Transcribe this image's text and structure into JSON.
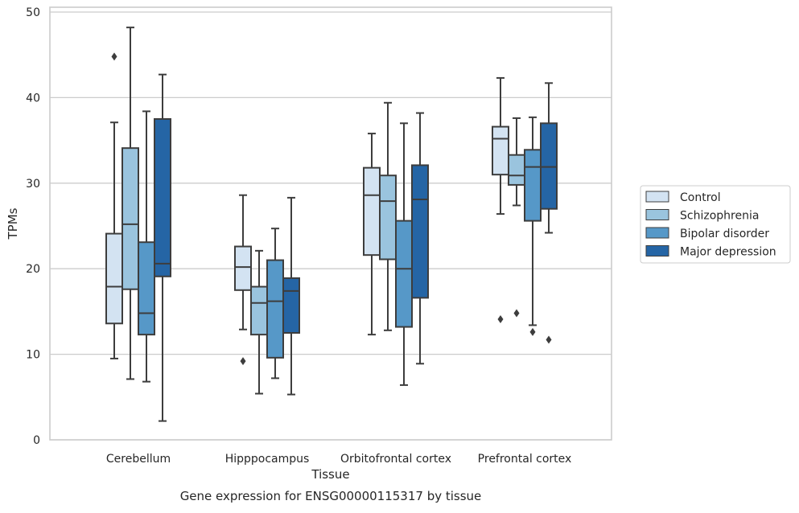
{
  "chart_data": {
    "type": "boxplot",
    "title": "",
    "xlabel": "Tissue",
    "ylabel": "TPMs",
    "caption": "Gene expression for ENSG00000115317 by tissue",
    "ylim": [
      0,
      50
    ],
    "yticks": [
      0,
      10,
      20,
      30,
      40,
      50
    ],
    "grid": true,
    "legend_position": "right",
    "categories": [
      "Cerebellum",
      "Hipppocampus",
      "Orbitofrontal cortex",
      "Prefrontal cortex"
    ],
    "series": [
      {
        "name": "Control",
        "color": "#d3e3f2",
        "boxes": [
          {
            "whislo": 9.5,
            "q1": 13.6,
            "med": 17.9,
            "q3": 24.1,
            "whishi": 37.1,
            "fliers": [
              44.8
            ]
          },
          {
            "whislo": 12.9,
            "q1": 17.5,
            "med": 20.2,
            "q3": 22.6,
            "whishi": 28.6,
            "fliers": [
              9.2
            ]
          },
          {
            "whislo": 12.3,
            "q1": 21.6,
            "med": 28.6,
            "q3": 31.8,
            "whishi": 35.8,
            "fliers": []
          },
          {
            "whislo": 26.4,
            "q1": 31.0,
            "med": 35.2,
            "q3": 36.6,
            "whishi": 42.3,
            "fliers": [
              14.1
            ]
          }
        ]
      },
      {
        "name": "Schizophrenia",
        "color": "#9ac4de",
        "boxes": [
          {
            "whislo": 7.1,
            "q1": 17.6,
            "med": 25.2,
            "q3": 34.1,
            "whishi": 48.2,
            "fliers": []
          },
          {
            "whislo": 5.4,
            "q1": 12.3,
            "med": 16.0,
            "q3": 17.9,
            "whishi": 22.1,
            "fliers": []
          },
          {
            "whislo": 12.8,
            "q1": 21.1,
            "med": 27.9,
            "q3": 30.9,
            "whishi": 39.4,
            "fliers": []
          },
          {
            "whislo": 27.4,
            "q1": 29.8,
            "med": 30.9,
            "q3": 33.3,
            "whishi": 37.6,
            "fliers": [
              14.8
            ]
          }
        ]
      },
      {
        "name": "Bipolar disorder",
        "color": "#5698c8",
        "boxes": [
          {
            "whislo": 6.8,
            "q1": 12.3,
            "med": 14.8,
            "q3": 23.1,
            "whishi": 38.4,
            "fliers": []
          },
          {
            "whislo": 7.2,
            "q1": 9.6,
            "med": 16.2,
            "q3": 21.0,
            "whishi": 24.7,
            "fliers": []
          },
          {
            "whislo": 6.4,
            "q1": 13.2,
            "med": 20.0,
            "q3": 25.6,
            "whishi": 37.0,
            "fliers": []
          },
          {
            "whislo": 13.4,
            "q1": 25.6,
            "med": 31.9,
            "q3": 33.9,
            "whishi": 37.7,
            "fliers": [
              12.6
            ]
          }
        ]
      },
      {
        "name": "Major depression",
        "color": "#2565a5",
        "boxes": [
          {
            "whislo": 2.2,
            "q1": 19.1,
            "med": 20.6,
            "q3": 37.5,
            "whishi": 42.7,
            "fliers": []
          },
          {
            "whislo": 5.3,
            "q1": 12.5,
            "med": 17.4,
            "q3": 18.9,
            "whishi": 28.3,
            "fliers": []
          },
          {
            "whislo": 8.9,
            "q1": 16.6,
            "med": 28.1,
            "q3": 32.1,
            "whishi": 38.2,
            "fliers": []
          },
          {
            "whislo": 24.2,
            "q1": 27.0,
            "med": 31.9,
            "q3": 37.0,
            "whishi": 41.7,
            "fliers": [
              11.7
            ]
          }
        ]
      }
    ],
    "colors": {
      "grid": "#cccccc",
      "frame": "#cccccc",
      "line": "#3d3d3d",
      "text": "#262626"
    }
  }
}
